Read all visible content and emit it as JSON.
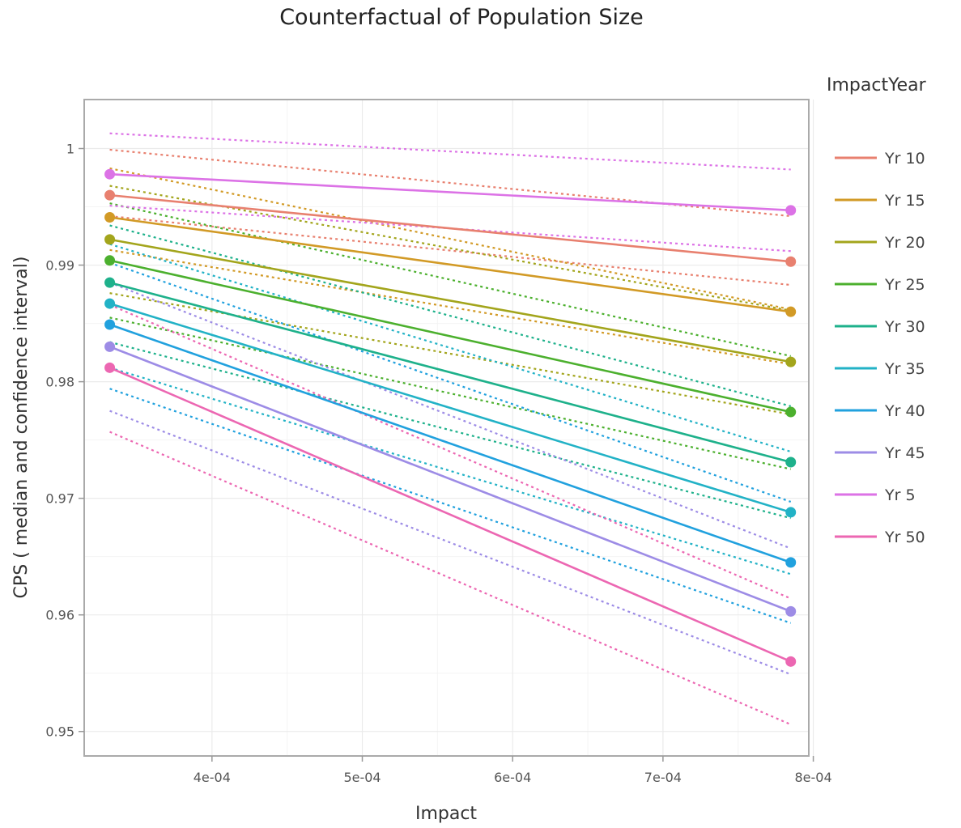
{
  "chart_data": {
    "type": "line",
    "title": "Counterfactual of Population Size",
    "xlabel": "Impact",
    "ylabel": "CPS ( median and confidence interval)",
    "xlim": [
      0.000315,
      0.000797
    ],
    "ylim": [
      0.9479,
      1.0042
    ],
    "xticks": [
      0.0004,
      0.0005,
      0.0006,
      0.0007,
      0.0008
    ],
    "xtick_labels": [
      "4e-04",
      "5e-04",
      "6e-04",
      "7e-04",
      "8e-04"
    ],
    "yticks": [
      0.95,
      0.96,
      0.97,
      0.98,
      0.99,
      1.0
    ],
    "ytick_labels": [
      "0.95",
      "0.96",
      "0.97",
      "0.98",
      "0.99",
      "1"
    ],
    "grid": true,
    "legend_title": "ImpactYear",
    "legend_position": "right",
    "x": [
      0.000332,
      0.000785
    ],
    "series": [
      {
        "name": "Yr 10",
        "color": "#E8806F",
        "median": [
          0.996,
          0.9903
        ],
        "lower": [
          0.9942,
          0.9883
        ],
        "upper": [
          0.9999,
          0.9942
        ]
      },
      {
        "name": "Yr 15",
        "color": "#D29A26",
        "median": [
          0.9941,
          0.986
        ],
        "lower": [
          0.9913,
          0.9815
        ],
        "upper": [
          0.9983,
          0.9862
        ]
      },
      {
        "name": "Yr 20",
        "color": "#A3A51C",
        "median": [
          0.9922,
          0.9817
        ],
        "lower": [
          0.9876,
          0.9772
        ],
        "upper": [
          0.9968,
          0.9861
        ]
      },
      {
        "name": "Yr 25",
        "color": "#4CB02E",
        "median": [
          0.9904,
          0.9774
        ],
        "lower": [
          0.9855,
          0.9725
        ],
        "upper": [
          0.9953,
          0.9822
        ]
      },
      {
        "name": "Yr 30",
        "color": "#1EB18B",
        "median": [
          0.9885,
          0.9731
        ],
        "lower": [
          0.9834,
          0.9683
        ],
        "upper": [
          0.9934,
          0.9779
        ]
      },
      {
        "name": "Yr 35",
        "color": "#22B2C6",
        "median": [
          0.9867,
          0.9688
        ],
        "lower": [
          0.9812,
          0.9635
        ],
        "upper": [
          0.9918,
          0.974
        ]
      },
      {
        "name": "Yr 40",
        "color": "#21A1DE",
        "median": [
          0.9849,
          0.9645
        ],
        "lower": [
          0.9794,
          0.9593
        ],
        "upper": [
          0.9902,
          0.9697
        ]
      },
      {
        "name": "Yr 45",
        "color": "#9D8CE6",
        "median": [
          0.983,
          0.9603
        ],
        "lower": [
          0.9775,
          0.9549
        ],
        "upper": [
          0.9885,
          0.9657
        ]
      },
      {
        "name": "Yr 5",
        "color": "#DC72E6",
        "median": [
          0.9978,
          0.9947
        ],
        "lower": [
          0.9951,
          0.9912
        ],
        "upper": [
          1.0013,
          0.9982
        ]
      },
      {
        "name": "Yr 50",
        "color": "#EC67B2",
        "median": [
          0.9812,
          0.956
        ],
        "lower": [
          0.9757,
          0.9506
        ],
        "upper": [
          0.9866,
          0.9614
        ]
      }
    ]
  }
}
